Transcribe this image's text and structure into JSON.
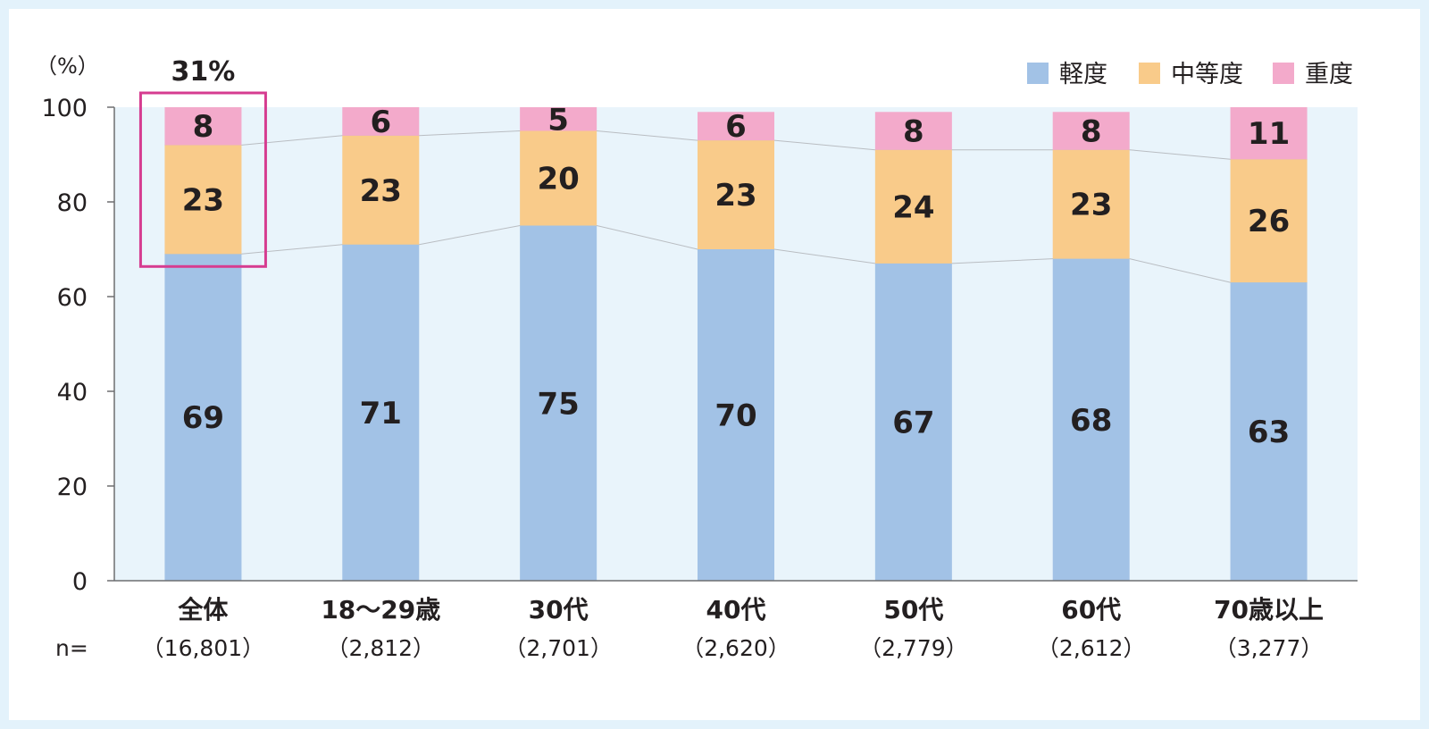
{
  "chart_data": {
    "type": "bar",
    "stacked": true,
    "unit_label": "（%）",
    "n_label": "n=",
    "categories": [
      "全体",
      "18～29歳",
      "30代",
      "40代",
      "50代",
      "60代",
      "70歳以上"
    ],
    "n_values": [
      "（16,801）",
      "（2,812）",
      "（2,701）",
      "（2,620）",
      "（2,779）",
      "（2,612）",
      "（3,277）"
    ],
    "series": [
      {
        "name": "軽度",
        "color": "#a2c2e6",
        "values": [
          69,
          71,
          75,
          70,
          67,
          68,
          63
        ]
      },
      {
        "name": "中等度",
        "color": "#f9cb8a",
        "values": [
          23,
          23,
          20,
          23,
          24,
          23,
          26
        ]
      },
      {
        "name": "重度",
        "color": "#f3aacb",
        "values": [
          8,
          6,
          5,
          6,
          8,
          8,
          11
        ]
      }
    ],
    "ylim": [
      0,
      100
    ],
    "yticks": [
      "0",
      "20",
      "40",
      "60",
      "80",
      "100"
    ],
    "legend_position": "top-right",
    "highlight": {
      "category": "全体",
      "label": "31%",
      "color": "#d63c90"
    },
    "plot_background": "#e9f4fb"
  }
}
